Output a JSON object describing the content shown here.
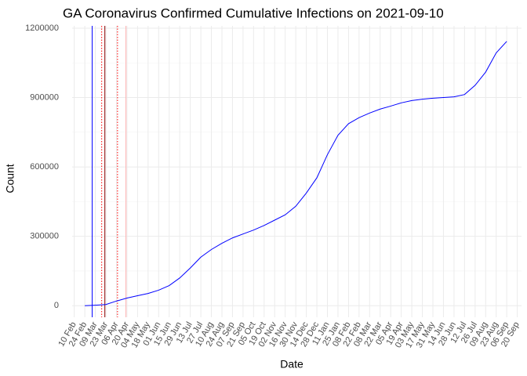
{
  "chart_data": {
    "type": "line",
    "title": "GA Coronavirus Confirmed Cumulative Infections on 2021-09-10",
    "x_label": "Date",
    "y_label": "Count",
    "categories": [
      "10 Feb",
      "24 Feb",
      "09 Mar",
      "23 Mar",
      "06 Apr",
      "20 Apr",
      "04 May",
      "18 May",
      "01 Jun",
      "15 Jun",
      "29 Jun",
      "13 Jul",
      "27 Jul",
      "10 Aug",
      "24 Aug",
      "07 Sep",
      "21 Sep",
      "05 Oct",
      "19 Oct",
      "02 Nov",
      "16 Nov",
      "30 Nov",
      "14 Dec",
      "28 Dec",
      "11 Jan",
      "25 Jan",
      "08 Feb",
      "22 Feb",
      "08 Mar",
      "22 Mar",
      "05 Apr",
      "19 Apr",
      "03 May",
      "17 May",
      "31 May",
      "14 Jun",
      "28 Jun",
      "12 Jul",
      "26 Jul",
      "09 Aug",
      "23 Aug",
      "06 Sep",
      "20 Sep"
    ],
    "series": [
      {
        "name": "Count",
        "color": "#0000ff",
        "values": [
          null,
          0,
          2000,
          5000,
          20000,
          33000,
          43000,
          53000,
          67000,
          87000,
          120000,
          163000,
          210000,
          243000,
          270000,
          293000,
          310000,
          327000,
          347000,
          370000,
          393000,
          430000,
          487000,
          553000,
          653000,
          737000,
          787000,
          813000,
          833000,
          850000,
          863000,
          877000,
          887000,
          893000,
          897000,
          900000,
          903000,
          913000,
          953000,
          1010000,
          1093000,
          1143000,
          null
        ]
      }
    ],
    "vlines": [
      {
        "x": 1.7,
        "color": "#0000ff",
        "style": "solid"
      },
      {
        "x": 2.6,
        "color": "#ff0000",
        "style": "dotted"
      },
      {
        "x": 2.9,
        "color": "#8b0000",
        "style": "solid"
      },
      {
        "x": 4.1,
        "color": "#ff0000",
        "style": "dotted"
      },
      {
        "x": 4.9,
        "color": "#ffb0b0",
        "style": "solid"
      }
    ],
    "xlim": [
      -0.2,
      42.4
    ],
    "ylim": [
      -50000,
      1210000
    ],
    "yticks": [
      0,
      300000,
      600000,
      900000,
      1200000
    ],
    "grid": true
  }
}
